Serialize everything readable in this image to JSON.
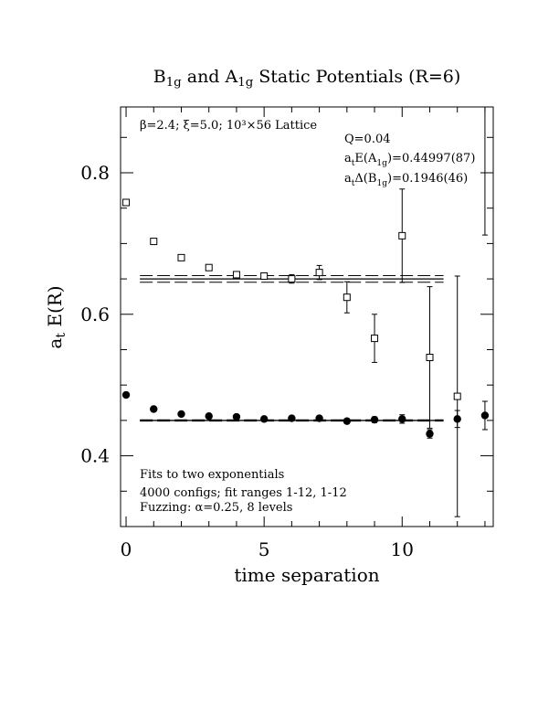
{
  "colors": {
    "ink": "#000000",
    "background": "#ffffff"
  },
  "chart_data": {
    "type": "scatter",
    "title": {
      "parts": [
        {
          "t": "B",
          "sub": "1g"
        },
        {
          "t": " and A",
          "sub": "1g"
        },
        {
          "t": " Static Potentials (R=6)"
        }
      ]
    },
    "xlabel": "time separation",
    "ylabel": {
      "main": "a",
      "sub": "t",
      "rest": " E(R)"
    },
    "xlim": [
      -0.2,
      13.3
    ],
    "ylim": [
      0.3,
      0.893
    ],
    "xticks": [
      0,
      5,
      10
    ],
    "yticks": [
      0.4,
      0.6,
      0.8
    ],
    "xtick_labels": [
      "0",
      "5",
      "10"
    ],
    "ytick_labels": [
      "0.4",
      "0.6",
      "0.8"
    ],
    "annotations": {
      "lattice": "β=2.4; ξ=5.0; 10³×56 Lattice",
      "q": "Q=0.04",
      "energy": {
        "pre": "a",
        "pre_sub": "t",
        "mid": "E(A",
        "mid_sub": "1g",
        "post": ")=0.44997(87)"
      },
      "gap": {
        "pre": "a",
        "pre_sub": "t",
        "mid": "Δ(B",
        "mid_sub": "1g",
        "post": ")=0.1946(46)"
      },
      "fits": "Fits to two exponentials",
      "configs": "4000 configs; fit ranges 1-12, 1-12",
      "fuzzing": "Fuzzing: α=0.25, 8 levels"
    },
    "series": [
      {
        "name": "B1g",
        "marker": "open-square",
        "x": [
          0,
          1,
          2,
          3,
          4,
          5,
          6,
          7,
          8,
          9,
          10,
          11,
          12
        ],
        "y": [
          0.758,
          0.703,
          0.68,
          0.666,
          0.656,
          0.654,
          0.65,
          0.659,
          0.624,
          0.566,
          0.711,
          0.539,
          0.484
        ],
        "err": [
          0.003,
          0.002,
          0.003,
          0.003,
          0.003,
          0.004,
          0.006,
          0.01,
          0.022,
          0.034,
          0.066,
          0.1,
          0.17
        ]
      },
      {
        "name": "A1g",
        "marker": "filled-circle",
        "x": [
          0,
          1,
          2,
          3,
          4,
          5,
          6,
          7,
          8,
          9,
          10,
          11,
          12,
          13
        ],
        "y": [
          0.486,
          0.466,
          0.459,
          0.456,
          0.455,
          0.452,
          0.453,
          0.453,
          0.449,
          0.451,
          0.452,
          0.431,
          0.452,
          0.457
        ],
        "err": [
          0.003,
          0.002,
          0.002,
          0.002,
          0.002,
          0.002,
          0.002,
          0.003,
          0.003,
          0.004,
          0.006,
          0.006,
          0.012,
          0.02
        ]
      }
    ],
    "fits": [
      {
        "x": [
          0.5,
          11.5
        ],
        "y": 0.64997,
        "band": 0.0047
      },
      {
        "x": [
          0.5,
          11.5
        ],
        "y": 0.44997,
        "band": 0.0009
      }
    ],
    "offscale_errorbar": {
      "x": 13,
      "ylo": 0.712,
      "yhi": 0.893
    },
    "grid": false
  }
}
